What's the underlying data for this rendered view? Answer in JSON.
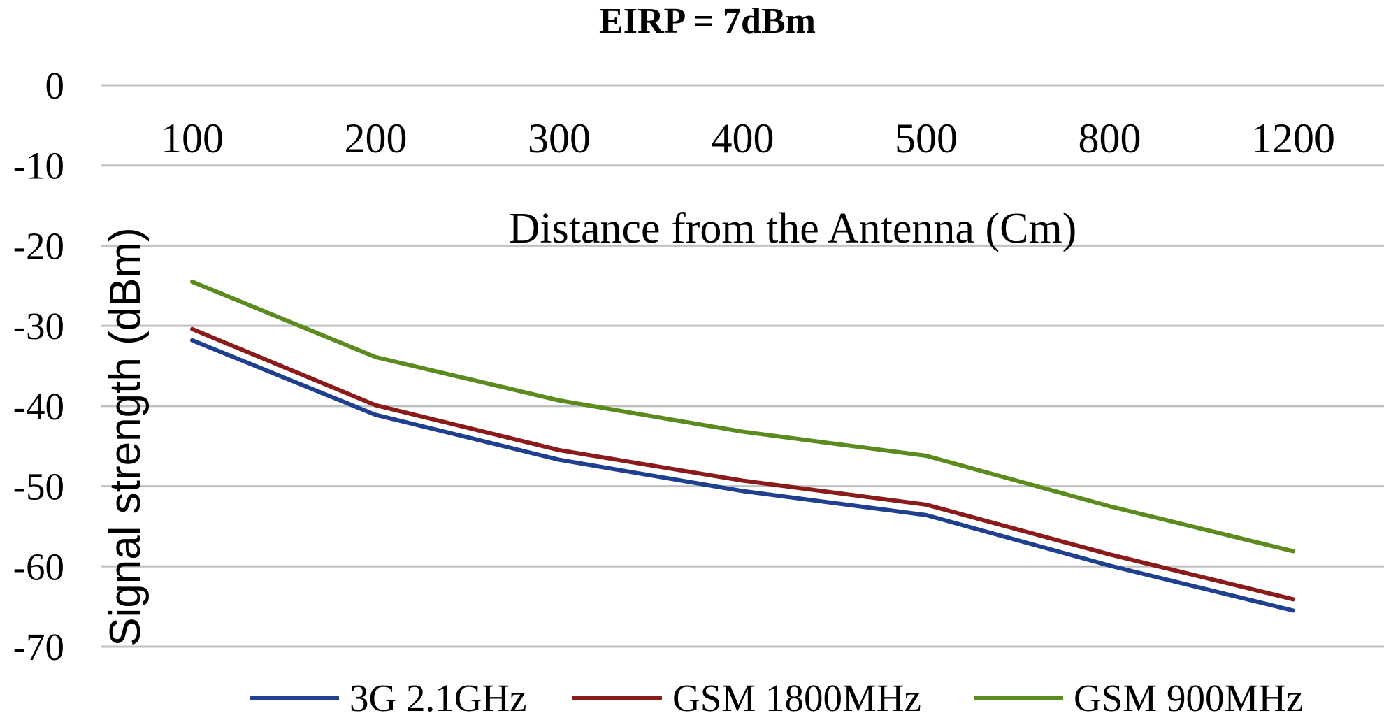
{
  "chart_data": {
    "type": "line",
    "title": "EIRP = 7dBm",
    "xlabel": "Distance from the Antenna (Cm)",
    "ylabel": "Signal strength (dBm)",
    "categories": [
      "100",
      "200",
      "300",
      "400",
      "500",
      "800",
      "1200"
    ],
    "ylim": [
      -70,
      0
    ],
    "yticks": [
      "0",
      "-10",
      "-20",
      "-30",
      "-40",
      "-50",
      "-60",
      "-70"
    ],
    "grid": true,
    "legend_position": "bottom",
    "series": [
      {
        "name": "3G 2.1GHz",
        "color": "#1f3f8f",
        "values": [
          -31.8,
          -41.1,
          -46.7,
          -50.6,
          -53.6,
          -59.9,
          -65.5
        ]
      },
      {
        "name": "GSM 1800MHz",
        "color": "#8b1a1a",
        "values": [
          -30.4,
          -39.9,
          -45.5,
          -49.3,
          -52.3,
          -58.5,
          -64.1
        ]
      },
      {
        "name": "GSM 900MHz",
        "color": "#5b8a1f",
        "values": [
          -24.5,
          -33.9,
          -39.3,
          -43.2,
          -46.2,
          -52.5,
          -58.1
        ]
      }
    ]
  }
}
